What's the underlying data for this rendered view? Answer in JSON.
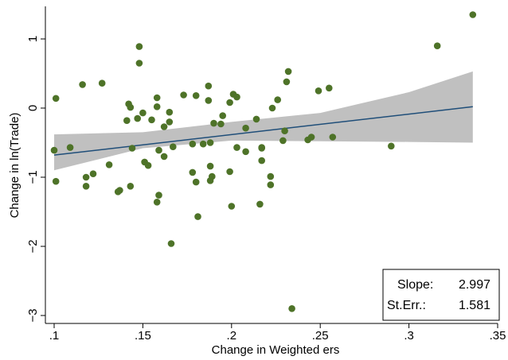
{
  "chart_data": {
    "type": "scatter",
    "title": "",
    "xlabel": "Change in Weighted ers",
    "ylabel": "Change in ln(Trade)",
    "xlim": [
      0.1,
      0.35
    ],
    "ylim": [
      -3.0,
      1.5
    ],
    "x_ticks": [
      {
        "value": 0.1,
        "label": ".1"
      },
      {
        "value": 0.15,
        "label": ".15"
      },
      {
        "value": 0.2,
        "label": ".2"
      },
      {
        "value": 0.25,
        "label": ".25"
      },
      {
        "value": 0.3,
        "label": ".3"
      },
      {
        "value": 0.35,
        "label": ".35"
      }
    ],
    "y_ticks": [
      {
        "value": 1,
        "label": "1"
      },
      {
        "value": 0,
        "label": "0"
      },
      {
        "value": -1,
        "label": "−1"
      },
      {
        "value": -2,
        "label": "−2"
      },
      {
        "value": -3,
        "label": "−3"
      }
    ],
    "grid": false,
    "colors": {
      "points": "#4e7328",
      "fit_line": "#1f4e79",
      "confidence_band": "#c0c0c0",
      "axis": "#000000"
    },
    "points": [
      {
        "x": 0.1,
        "y": -0.61
      },
      {
        "x": 0.101,
        "y": 0.14
      },
      {
        "x": 0.101,
        "y": -1.06
      },
      {
        "x": 0.109,
        "y": -0.57
      },
      {
        "x": 0.116,
        "y": 0.34
      },
      {
        "x": 0.118,
        "y": -1.0
      },
      {
        "x": 0.118,
        "y": -1.13
      },
      {
        "x": 0.122,
        "y": -0.95
      },
      {
        "x": 0.127,
        "y": 0.36
      },
      {
        "x": 0.131,
        "y": -0.82
      },
      {
        "x": 0.136,
        "y": -1.21
      },
      {
        "x": 0.137,
        "y": -1.19
      },
      {
        "x": 0.141,
        "y": -0.18
      },
      {
        "x": 0.142,
        "y": 0.06
      },
      {
        "x": 0.143,
        "y": 0.01
      },
      {
        "x": 0.143,
        "y": -1.13
      },
      {
        "x": 0.144,
        "y": -0.58
      },
      {
        "x": 0.147,
        "y": -0.15
      },
      {
        "x": 0.148,
        "y": 0.65
      },
      {
        "x": 0.148,
        "y": 0.89
      },
      {
        "x": 0.15,
        "y": -0.07
      },
      {
        "x": 0.151,
        "y": -0.78
      },
      {
        "x": 0.153,
        "y": -0.83
      },
      {
        "x": 0.155,
        "y": -0.17
      },
      {
        "x": 0.158,
        "y": 0.02
      },
      {
        "x": 0.158,
        "y": 0.15
      },
      {
        "x": 0.158,
        "y": -1.36
      },
      {
        "x": 0.159,
        "y": -1.26
      },
      {
        "x": 0.159,
        "y": -0.61
      },
      {
        "x": 0.162,
        "y": -0.27
      },
      {
        "x": 0.162,
        "y": -0.7
      },
      {
        "x": 0.165,
        "y": -0.06
      },
      {
        "x": 0.165,
        "y": -0.2
      },
      {
        "x": 0.166,
        "y": -1.96
      },
      {
        "x": 0.167,
        "y": -0.56
      },
      {
        "x": 0.173,
        "y": 0.19
      },
      {
        "x": 0.178,
        "y": -0.93
      },
      {
        "x": 0.178,
        "y": -0.52
      },
      {
        "x": 0.18,
        "y": -1.07
      },
      {
        "x": 0.18,
        "y": 0.18
      },
      {
        "x": 0.181,
        "y": -1.57
      },
      {
        "x": 0.184,
        "y": -0.52
      },
      {
        "x": 0.187,
        "y": 0.11
      },
      {
        "x": 0.187,
        "y": 0.32
      },
      {
        "x": 0.188,
        "y": -1.05
      },
      {
        "x": 0.188,
        "y": -0.84
      },
      {
        "x": 0.188,
        "y": -0.5
      },
      {
        "x": 0.189,
        "y": -0.99
      },
      {
        "x": 0.19,
        "y": -0.22
      },
      {
        "x": 0.194,
        "y": -0.23
      },
      {
        "x": 0.195,
        "y": -0.11
      },
      {
        "x": 0.199,
        "y": 0.08
      },
      {
        "x": 0.199,
        "y": -0.92
      },
      {
        "x": 0.2,
        "y": -1.42
      },
      {
        "x": 0.201,
        "y": 0.2
      },
      {
        "x": 0.203,
        "y": 0.16
      },
      {
        "x": 0.203,
        "y": -0.57
      },
      {
        "x": 0.208,
        "y": -0.63
      },
      {
        "x": 0.208,
        "y": -0.29
      },
      {
        "x": 0.214,
        "y": -0.16
      },
      {
        "x": 0.216,
        "y": -1.39
      },
      {
        "x": 0.217,
        "y": -0.57
      },
      {
        "x": 0.217,
        "y": -0.76
      },
      {
        "x": 0.217,
        "y": -0.58
      },
      {
        "x": 0.222,
        "y": -0.99
      },
      {
        "x": 0.222,
        "y": -1.11
      },
      {
        "x": 0.223,
        "y": 0.0
      },
      {
        "x": 0.226,
        "y": 0.12
      },
      {
        "x": 0.229,
        "y": -0.47
      },
      {
        "x": 0.23,
        "y": -0.33
      },
      {
        "x": 0.231,
        "y": 0.38
      },
      {
        "x": 0.232,
        "y": 0.53
      },
      {
        "x": 0.234,
        "y": -2.9
      },
      {
        "x": 0.243,
        "y": -0.46
      },
      {
        "x": 0.245,
        "y": -0.42
      },
      {
        "x": 0.249,
        "y": 0.25
      },
      {
        "x": 0.255,
        "y": 0.29
      },
      {
        "x": 0.257,
        "y": -0.42
      },
      {
        "x": 0.29,
        "y": -0.55
      },
      {
        "x": 0.316,
        "y": 0.9
      },
      {
        "x": 0.336,
        "y": 1.35
      }
    ],
    "fit_line": {
      "x": [
        0.1,
        0.336
      ],
      "y": [
        -0.68,
        0.02
      ]
    },
    "confidence_band": {
      "x": [
        0.1,
        0.15,
        0.2,
        0.25,
        0.3,
        0.336
      ],
      "upper": [
        -0.38,
        -0.35,
        -0.2,
        -0.07,
        0.23,
        0.53
      ],
      "lower": [
        -0.9,
        -0.58,
        -0.47,
        -0.48,
        -0.49,
        -0.5
      ]
    }
  },
  "stats_box": {
    "slope_label": "Slope:",
    "slope_value": "2.997",
    "se_label": "St.Err.:",
    "se_value": "1.581"
  }
}
